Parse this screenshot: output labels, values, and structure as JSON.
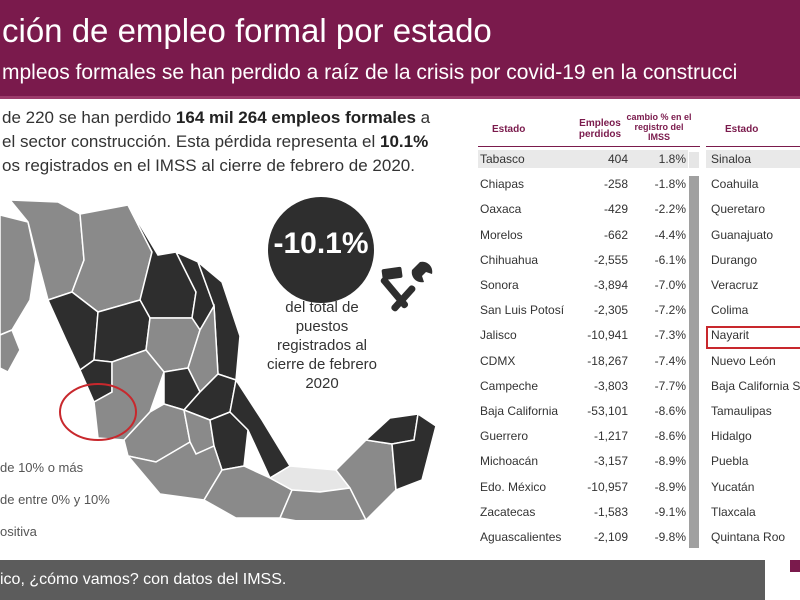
{
  "header": {
    "title": "ción de empleo formal por estado",
    "subtitle": "mpleos formales se han perdido a raíz de la crisis por covid-19 en la construcci"
  },
  "intro": {
    "line1_pre": "de 220 se han perdido ",
    "line1_bold": "164 mil 264 empleos formales",
    "line1_post": " a",
    "line2_pre": "el sector construcción.  Esta pérdida representa el ",
    "line2_bold": "10.1%",
    "line3": "os registrados en el IMSS al cierre de febrero de 2020."
  },
  "highlight": {
    "value": "-10.1%",
    "caption_lines": [
      "del total de",
      "puestos",
      "registrados al",
      "cierre de febrero",
      "2020"
    ]
  },
  "legend": {
    "items": [
      {
        "label": "de 10% o más",
        "color": "#2e2e2e"
      },
      {
        "label": "de entre 0% y 10%",
        "color": "#8a8a8a"
      },
      {
        "label": "ositiva",
        "color": "#e6e6e6"
      }
    ]
  },
  "footer": {
    "text": "ico, ¿cómo vamos? con datos del IMSS."
  },
  "icons": {
    "tools": "hammer-wrench-icon"
  },
  "colors": {
    "brand": "#7a1a4c",
    "dark_state": "#2e2e2e",
    "mid_state": "#8a8a8a",
    "light_state": "#e6e6e6",
    "highlight_circle": "#c8282d"
  },
  "chart_data": {
    "type": "table",
    "columns": [
      "Estado",
      "Empleos perdidos",
      "cambio % en el registro del IMSS"
    ],
    "rows": [
      {
        "state": "Tabasco",
        "jobs": "404",
        "pct": "1.8%"
      },
      {
        "state": "Chiapas",
        "jobs": "-258",
        "pct": "-1.8%"
      },
      {
        "state": "Oaxaca",
        "jobs": "-429",
        "pct": "-2.2%"
      },
      {
        "state": "Morelos",
        "jobs": "-662",
        "pct": "-4.4%"
      },
      {
        "state": "Chihuahua",
        "jobs": "-2,555",
        "pct": "-6.1%"
      },
      {
        "state": "Sonora",
        "jobs": "-3,894",
        "pct": "-7.0%"
      },
      {
        "state": "San Luis Potosí",
        "jobs": "-2,305",
        "pct": "-7.2%"
      },
      {
        "state": "Jalisco",
        "jobs": "-10,941",
        "pct": "-7.3%"
      },
      {
        "state": "CDMX",
        "jobs": "-18,267",
        "pct": "-7.4%"
      },
      {
        "state": "Campeche",
        "jobs": "-3,803",
        "pct": "-7.7%"
      },
      {
        "state": "Baja California",
        "jobs": "-53,101",
        "pct": "-8.6%"
      },
      {
        "state": "Guerrero",
        "jobs": "-1,217",
        "pct": "-8.6%"
      },
      {
        "state": "Michoacán",
        "jobs": "-3,157",
        "pct": "-8.9%"
      },
      {
        "state": "Edo. México",
        "jobs": "-10,957",
        "pct": "-8.9%"
      },
      {
        "state": "Zacatecas",
        "jobs": "-1,583",
        "pct": "-9.1%"
      },
      {
        "state": "Aguascalientes",
        "jobs": "-2,109",
        "pct": "-9.8%"
      }
    ],
    "second_table": {
      "column": "Estado",
      "states": [
        "Sinaloa",
        "Coahuila",
        "Queretaro",
        "Guanajuato",
        "Durango",
        "Veracruz",
        "Colima",
        "Nayarit",
        "Nuevo León",
        "Baja California Su",
        "Tamaulipas",
        "Hidalgo",
        "Puebla",
        "Yucatán",
        "Tlaxcala",
        "Quintana Roo"
      ],
      "highlighted": "Nayarit"
    }
  }
}
